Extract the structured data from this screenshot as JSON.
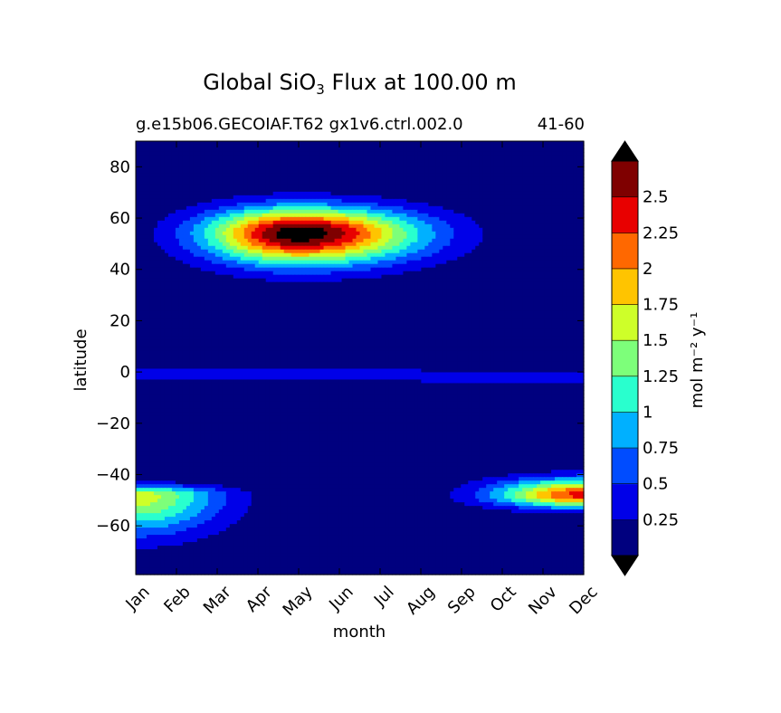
{
  "chart_data": {
    "type": "heatmap",
    "subtype": "filled-contour",
    "title": "Global SiO₃ Flux at 100.00 m",
    "title_main": "Global SiO",
    "title_sub": "3",
    "title_rest": " Flux at 100.00 m",
    "subtitle_left": "g.e15b06.GECOIAF.T62 gx1v6.ctrl.002.0",
    "subtitle_right": "41-60",
    "xlabel": "month",
    "ylabel": "latitude",
    "x_ticks": [
      "Jan",
      "Feb",
      "Mar",
      "Apr",
      "May",
      "Jun",
      "Jul",
      "Aug",
      "Sep",
      "Oct",
      "Nov",
      "Dec"
    ],
    "xlim": [
      0,
      11
    ],
    "ylim": [
      -79,
      90
    ],
    "y_ticks": [
      80,
      60,
      40,
      20,
      0,
      -20,
      -40,
      -60
    ],
    "y_tick_labels": [
      "80",
      "60",
      "40",
      "20",
      "0",
      "−20",
      "−40",
      "−60"
    ],
    "colorbar": {
      "label": "mol m⁻² y⁻¹",
      "levels": [
        0,
        0.25,
        0.5,
        0.75,
        1,
        1.25,
        1.5,
        1.75,
        2,
        2.25,
        2.5,
        2.75
      ],
      "tick_labels": [
        "0.25",
        "0.5",
        "0.75",
        "1",
        "1.25",
        "1.5",
        "1.75",
        "2",
        "2.25",
        "2.5"
      ],
      "colors": [
        "#00007f",
        "#0000e8",
        "#004cff",
        "#00b0ff",
        "#29ffce",
        "#7dff7a",
        "#ceff29",
        "#ffc400",
        "#ff6800",
        "#e80000",
        "#7f0000"
      ],
      "under_color": "#000000",
      "over_color": "#000000",
      "extend": "both"
    },
    "features": [
      {
        "name": "north-spring-bloom",
        "peak_month": 4.0,
        "peak_lat": 54,
        "peak_value": 2.9,
        "lat_range": [
          35,
          70
        ],
        "month_range": [
          1.2,
          8.6
        ]
      },
      {
        "name": "southern-summer-bloom-late",
        "peak_month": 11.0,
        "peak_lat": -48,
        "peak_value": 2.3,
        "lat_range": [
          -56,
          -38
        ],
        "month_range": [
          7.5,
          11
        ]
      },
      {
        "name": "southern-summer-bloom-early",
        "peak_month": 0.0,
        "peak_lat": -48,
        "peak_value": 1.6,
        "lat_range": [
          -72,
          -42
        ],
        "month_range": [
          0,
          3.3
        ]
      },
      {
        "name": "equatorial-band",
        "peak_lat": -1,
        "peak_value": 0.3,
        "lat_range": [
          -5,
          3
        ],
        "month_range": [
          0,
          11
        ]
      }
    ]
  }
}
